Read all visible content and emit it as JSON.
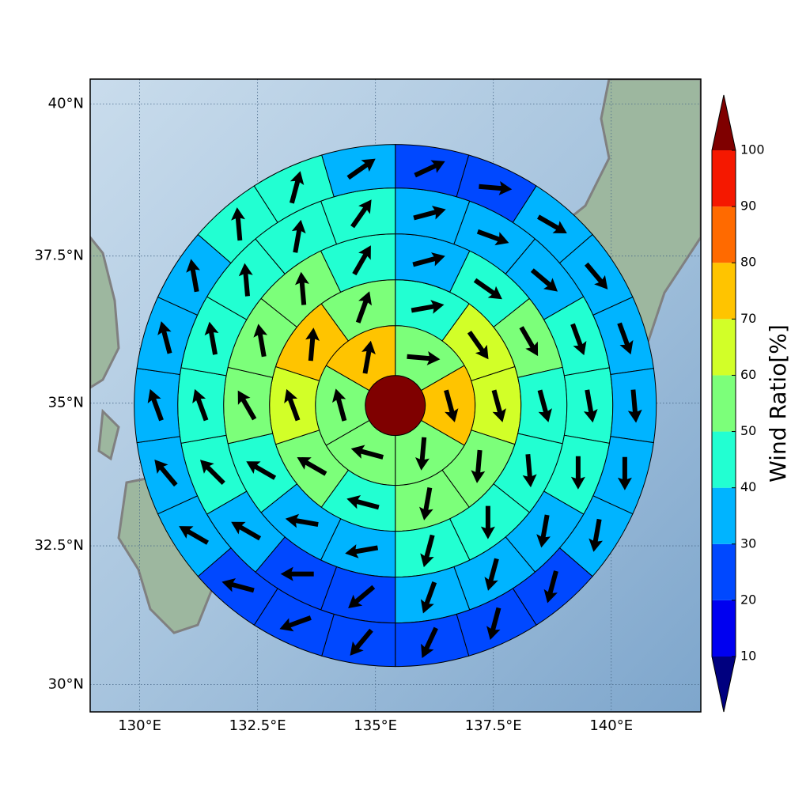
{
  "chart_data": {
    "type": "polar_sectors",
    "xlim": [
      128.95,
      141.9
    ],
    "ylim": [
      29.5,
      40.4
    ],
    "xticks": [
      {
        "value": 130,
        "label": "130°E"
      },
      {
        "value": 132.5,
        "label": "132.5°E"
      },
      {
        "value": 135,
        "label": "135°E"
      },
      {
        "value": 137.5,
        "label": "137.5°E"
      },
      {
        "value": 140,
        "label": "140°E"
      }
    ],
    "yticks": [
      {
        "value": 30,
        "label": "30°N"
      },
      {
        "value": 32.5,
        "label": "32.5°N"
      },
      {
        "value": 35,
        "label": "35°N"
      },
      {
        "value": 37.5,
        "label": "37.5°N"
      },
      {
        "value": 40,
        "label": "40°N"
      }
    ],
    "grid": true,
    "center_lon": 135.42,
    "center_lat": 34.96,
    "center_value": 105,
    "arrow_color": "#000000",
    "rings": [
      {
        "values": [
          55,
          75,
          55,
          55,
          55,
          75
        ],
        "directions": [
          95,
          165,
          185,
          285,
          345,
          10
        ]
      },
      {
        "values": [
          45,
          65,
          65,
          55,
          55,
          45,
          55,
          65,
          75,
          55
        ],
        "directions": [
          80,
          145,
          165,
          185,
          190,
          285,
          300,
          340,
          5,
          20
        ]
      },
      {
        "values": [
          35,
          45,
          55,
          45,
          45,
          45,
          45,
          35,
          35,
          45,
          55,
          55,
          55,
          45
        ],
        "directions": [
          75,
          125,
          150,
          165,
          175,
          180,
          195,
          260,
          280,
          300,
          330,
          350,
          355,
          30
        ]
      },
      {
        "values": [
          35,
          35,
          35,
          45,
          45,
          45,
          35,
          35,
          35,
          25,
          25,
          35,
          45,
          45,
          45,
          45,
          45,
          45
        ],
        "directions": [
          75,
          110,
          130,
          160,
          170,
          180,
          190,
          195,
          200,
          230,
          270,
          300,
          315,
          340,
          350,
          355,
          10,
          35
        ]
      },
      {
        "values": [
          25,
          25,
          35,
          35,
          35,
          35,
          35,
          35,
          25,
          25,
          25,
          25,
          25,
          25,
          35,
          35,
          35,
          35,
          35,
          45,
          45,
          35
        ],
        "directions": [
          65,
          95,
          120,
          140,
          160,
          175,
          180,
          190,
          195,
          195,
          205,
          220,
          250,
          285,
          300,
          320,
          340,
          345,
          350,
          355,
          15,
          55
        ]
      }
    ],
    "colorbar": {
      "label": "Wind Ratio[%]",
      "levels": [
        10,
        20,
        30,
        40,
        50,
        60,
        70,
        80,
        90,
        100
      ],
      "colors": [
        "#0000f0",
        "#0048ff",
        "#00b4ff",
        "#22ffd2",
        "#7cff7a",
        "#d2ff28",
        "#ffc400",
        "#ff6a00",
        "#f51800"
      ],
      "under_color": "#00007f",
      "over_color": "#7f0000"
    }
  }
}
